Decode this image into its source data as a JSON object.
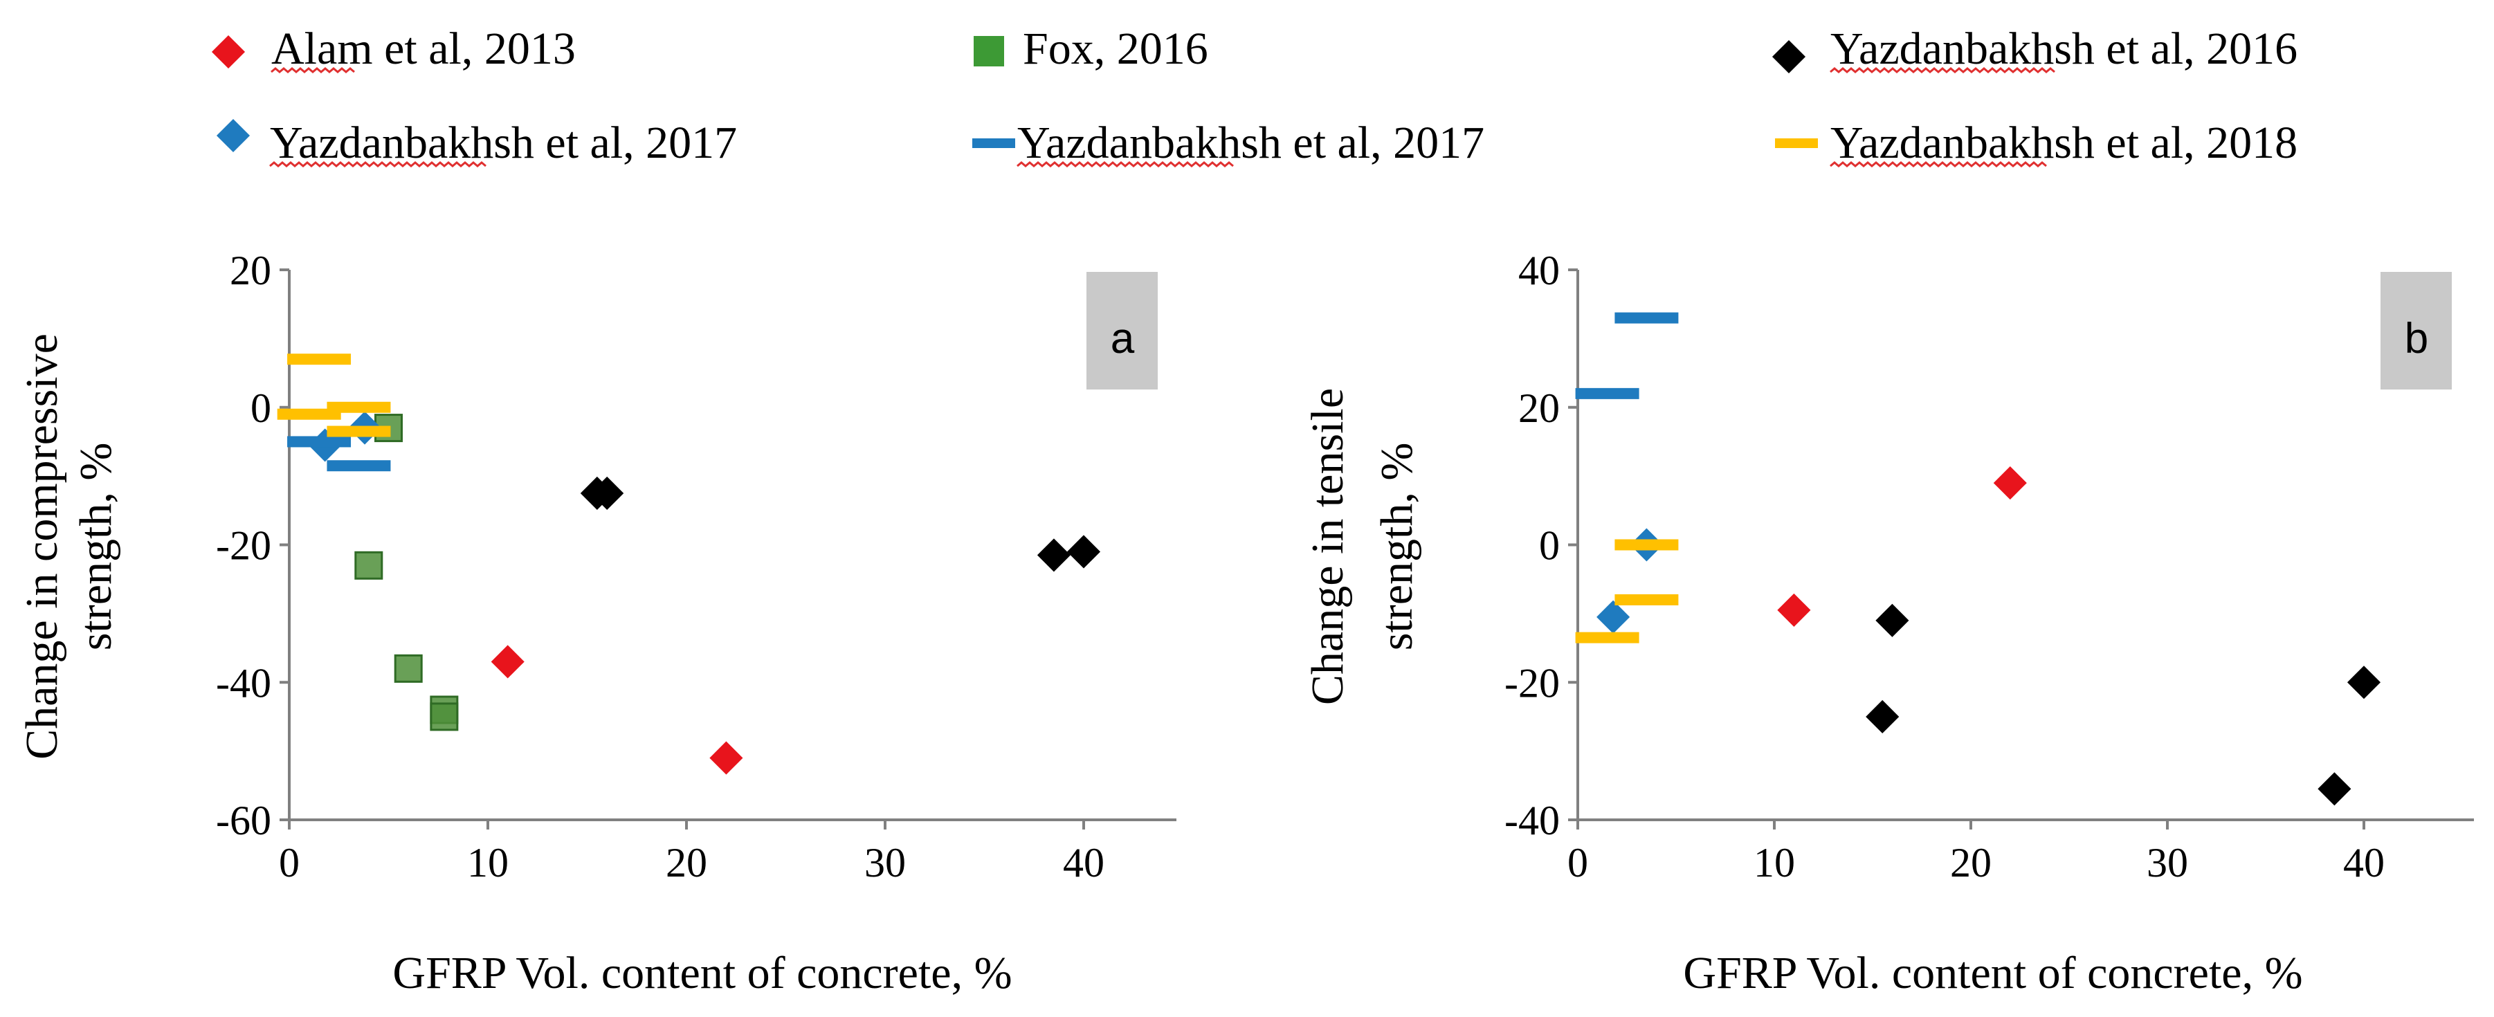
{
  "legend": [
    {
      "label": "Alam et al, 2013",
      "marker": "diamond",
      "color": "#e8141c"
    },
    {
      "label": "Fox, 2016",
      "marker": "square",
      "color": "#3d9a35"
    },
    {
      "label": "Yazdanbakhsh et al, 2016",
      "marker": "diamond",
      "color": "#000000"
    },
    {
      "label": "Yazdanbakhsh et al, 2017",
      "marker": "diamond",
      "color": "#1f7bbf"
    },
    {
      "label": "Yazdanbakhsh et al, 2017",
      "marker": "dash",
      "color": "#1f7bbf"
    },
    {
      "label": "Yazdanbakhsh et al, 2018",
      "marker": "dash",
      "color": "#ffc000"
    }
  ],
  "colors": {
    "alam": "#e8141c",
    "fox": "#4f8f3a",
    "yazd2016": "#000000",
    "yazd2017_diamond": "#1f7bbf",
    "yazd2017_dash": "#1f7bbf",
    "yazd2018": "#ffc000",
    "panel_tag_bg": "#c9c9c9"
  },
  "chart_data": [
    {
      "type": "scatter",
      "panel_label": "a",
      "xlabel": "GFRP Vol. content of concrete, %",
      "ylabel_lines": [
        "Change in compressive",
        "strength, %"
      ],
      "xlim": [
        0,
        45
      ],
      "ylim": [
        -60,
        20
      ],
      "xticks": [
        0,
        10,
        20,
        30,
        40
      ],
      "yticks": [
        20,
        0,
        -20,
        -40,
        -60
      ],
      "series": [
        {
          "name": "Alam et al, 2013",
          "marker": "diamond",
          "colorKey": "alam",
          "points": [
            [
              11,
              -37
            ],
            [
              22,
              -51
            ]
          ]
        },
        {
          "name": "Fox, 2016",
          "marker": "square",
          "colorKey": "fox",
          "points": [
            [
              5,
              -3
            ],
            [
              4,
              -23
            ],
            [
              6,
              -38
            ],
            [
              7.8,
              -44
            ],
            [
              7.8,
              -45
            ]
          ]
        },
        {
          "name": "Yazdanbakhsh et al, 2016",
          "marker": "diamond",
          "colorKey": "yazd2016",
          "points": [
            [
              15.5,
              -12.5
            ],
            [
              16,
              -12.5
            ],
            [
              38.5,
              -21.5
            ],
            [
              40,
              -21
            ]
          ]
        },
        {
          "name": "Yazdanbakhsh et al, 2017",
          "marker": "diamond",
          "colorKey": "yazd2017_diamond",
          "points": [
            [
              1.8,
              -5.5
            ],
            [
              3.8,
              -3
            ]
          ]
        },
        {
          "name": "Yazdanbakhsh et al, 2017",
          "marker": "dash",
          "colorKey": "yazd2017_dash",
          "points": [
            [
              1.5,
              -5
            ],
            [
              3.5,
              -8.5
            ]
          ]
        },
        {
          "name": "Yazdanbakhsh et al, 2018",
          "marker": "dash",
          "colorKey": "yazd2018",
          "points": [
            [
              1.5,
              7
            ],
            [
              1,
              -1
            ],
            [
              3.5,
              0
            ],
            [
              3.5,
              -3.5
            ]
          ]
        }
      ]
    },
    {
      "type": "scatter",
      "panel_label": "b",
      "xlabel": "GFRP Vol. content of concrete, %",
      "ylabel_lines": [
        "Change in tensile",
        "strength, %"
      ],
      "xlim": [
        0,
        45
      ],
      "ylim": [
        -40,
        40
      ],
      "xticks": [
        0,
        10,
        20,
        30,
        40
      ],
      "yticks": [
        40,
        20,
        0,
        -20,
        -40
      ],
      "series": [
        {
          "name": "Alam et al, 2013",
          "marker": "diamond",
          "colorKey": "alam",
          "points": [
            [
              11,
              -9.5
            ],
            [
              22,
              9
            ]
          ]
        },
        {
          "name": "Yazdanbakhsh et al, 2016",
          "marker": "diamond",
          "colorKey": "yazd2016",
          "points": [
            [
              16,
              -11
            ],
            [
              15.5,
              -25
            ],
            [
              38.5,
              -35.5
            ],
            [
              40,
              -20
            ]
          ]
        },
        {
          "name": "Yazdanbakhsh et al, 2017",
          "marker": "diamond",
          "colorKey": "yazd2017_diamond",
          "points": [
            [
              1.8,
              -10.5
            ],
            [
              3.5,
              0
            ]
          ]
        },
        {
          "name": "Yazdanbakhsh et al, 2017",
          "marker": "dash",
          "colorKey": "yazd2017_dash",
          "points": [
            [
              1.5,
              22
            ],
            [
              3.5,
              33
            ]
          ]
        },
        {
          "name": "Yazdanbakhsh et al, 2018",
          "marker": "dash",
          "colorKey": "yazd2018",
          "points": [
            [
              3.5,
              0
            ],
            [
              3.5,
              -8
            ],
            [
              1.5,
              -13.5
            ]
          ]
        }
      ]
    }
  ]
}
